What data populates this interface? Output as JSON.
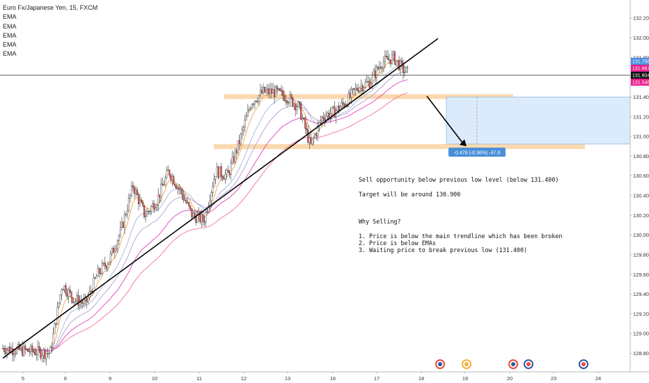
{
  "legend": {
    "title": "Euro Fx/Japanese Yen, 15, FXCM",
    "indicators": [
      "EMA",
      "EMA",
      "EMA",
      "EMA",
      "EMA"
    ]
  },
  "colors": {
    "price_up": "#26a69a",
    "price_down": "#ef5350",
    "candle": "#333333",
    "ema_fast": "#f4a142",
    "ema_mid": "#9fb7d6",
    "ema_slow1": "#b59bd1",
    "ema_slow2": "#e040c0",
    "ema_slow3": "#f26fa0",
    "zone": "#fbd9b0",
    "target_box": "#dcebfb",
    "target_tag": "#4a90d9",
    "trendline": "#000000",
    "last_tag_blue": "#4a8fe0",
    "last_tag_magenta": "#e91e8c",
    "last_tag_dark": "#111111"
  },
  "notes": {
    "line1": "Sell opportunity below previous low level (below 131.400)",
    "line2": "Target will be around 130.900",
    "why": "Why Selling?",
    "reasons": [
      "1. Price is below the main trendline which has been broken",
      "2. Price is below EMAs",
      "3. Waiting price to break previous low (131.400)"
    ]
  },
  "chart_data": {
    "type": "candlestick",
    "title": "Euro Fx/Japanese Yen, 15, FXCM",
    "ylim": [
      128.7,
      132.3
    ],
    "y_ticks": [
      "132.200",
      "132.000",
      "131.800",
      "131.600",
      "131.400",
      "131.200",
      "131.000",
      "130.800",
      "130.600",
      "130.400",
      "130.200",
      "130.000",
      "129.800",
      "129.600",
      "129.400",
      "129.200",
      "129.000",
      "128.800"
    ],
    "x_ticks": [
      "5",
      "6",
      "9",
      "10",
      "11",
      "12",
      "13",
      "16",
      "17",
      "18",
      "19",
      "20",
      "23",
      "24"
    ],
    "price_path": [
      [
        0,
        128.85
      ],
      [
        4,
        128.8
      ],
      [
        5,
        129.5
      ],
      [
        6,
        129.35
      ],
      [
        7,
        129.3
      ],
      [
        8,
        129.6
      ],
      [
        9,
        129.75
      ],
      [
        10,
        130.05
      ],
      [
        11,
        130.5
      ],
      [
        12,
        130.2
      ],
      [
        13,
        130.35
      ],
      [
        14,
        130.65
      ],
      [
        15,
        130.45
      ],
      [
        16,
        130.2
      ],
      [
        17,
        130.15
      ],
      [
        18,
        130.65
      ],
      [
        19,
        130.6
      ],
      [
        20,
        130.95
      ],
      [
        21,
        131.35
      ],
      [
        22,
        131.45
      ],
      [
        23,
        131.45
      ],
      [
        24,
        131.4
      ],
      [
        25,
        131.3
      ],
      [
        26,
        130.9
      ],
      [
        27,
        131.2
      ],
      [
        28,
        131.25
      ],
      [
        29,
        131.35
      ],
      [
        30,
        131.5
      ],
      [
        31,
        131.55
      ],
      [
        32,
        131.75
      ],
      [
        33,
        131.8
      ],
      [
        34,
        131.65
      ]
    ],
    "last_prices": [
      "131.758",
      "131.667",
      "131.604",
      "131.548"
    ],
    "resistance_zone": 131.4,
    "target_zone": 130.9,
    "projection_label": "-0.478 (-0.36%) -47.8",
    "projection_from": 131.4,
    "projection_to": 130.922,
    "trendline": {
      "from": [
        0,
        128.75
      ],
      "to": [
        35,
        131.95
      ]
    },
    "grid": false
  }
}
